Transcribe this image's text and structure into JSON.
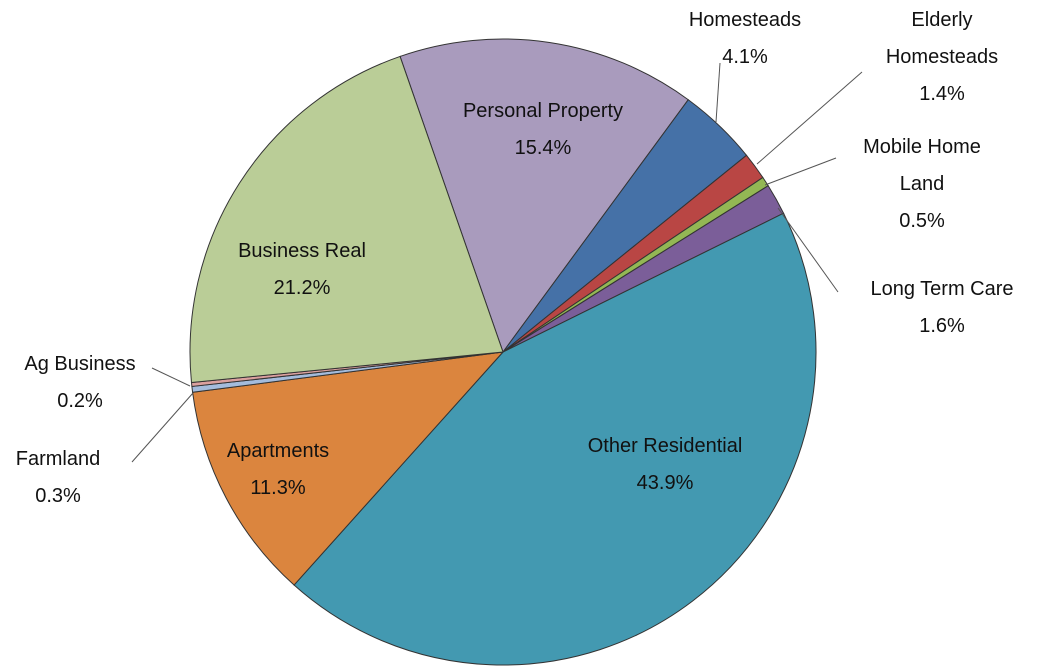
{
  "chart_data": {
    "type": "pie",
    "categories": [
      "Personal Property",
      "Homesteads",
      "Elderly Homesteads",
      "Mobile Home Land",
      "Long Term Care",
      "Other Residential",
      "Apartments",
      "Farmland",
      "Ag Business",
      "Business Real"
    ],
    "values": [
      15.4,
      4.1,
      1.4,
      0.5,
      1.6,
      43.9,
      11.3,
      0.3,
      0.2,
      21.2
    ],
    "value_labels": [
      "15.4%",
      "4.1%",
      "1.4%",
      "0.5%",
      "1.6%",
      "43.9%",
      "11.3%",
      "0.3%",
      "0.2%",
      "21.2%"
    ],
    "colors": [
      "#a99bbd",
      "#4571a7",
      "#b94644",
      "#93b754",
      "#7b5e99",
      "#4399b1",
      "#db853e",
      "#a4bcdc",
      "#dba09e",
      "#bacd97"
    ]
  }
}
